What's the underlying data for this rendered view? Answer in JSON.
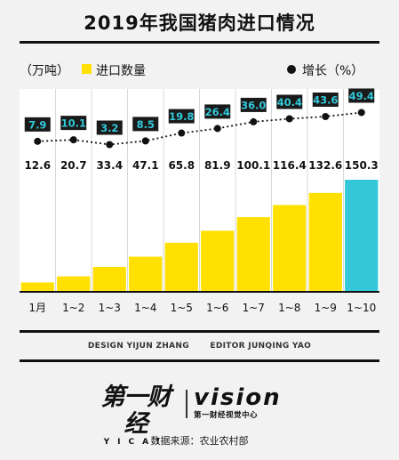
{
  "title": "2019年我国猪肉进口情况",
  "credits": {
    "design": "DESIGN YIJUN ZHANG",
    "editor": "EDITOR JUNQING YAO"
  },
  "logos": {
    "yica_text": "第一财经",
    "yica_sub": "YICAI",
    "vision_text": "vision",
    "vision_sub": "第一财经视觉中心"
  },
  "source": "数据来源：农业农村部",
  "colors": {
    "bar": "#ffe000",
    "bar_highlight": "#33c8d9",
    "label_box": "#1a1a1a",
    "label_text": "#33c8d9",
    "background": "#f2f2f2"
  },
  "chart_data": {
    "type": "bar",
    "categories": [
      "1月",
      "1~2",
      "1~3",
      "1~4",
      "1~5",
      "1~6",
      "1~7",
      "1~8",
      "1~9",
      "1~10"
    ],
    "series": [
      {
        "name": "进口数量",
        "unit": "万吨",
        "type": "bar",
        "values": [
          12.6,
          20.7,
          33.4,
          47.1,
          65.8,
          81.9,
          100.1,
          116.4,
          132.6,
          150.3
        ]
      },
      {
        "name": "增长",
        "unit": "%",
        "type": "line",
        "values": [
          7.9,
          10.1,
          3.2,
          8.5,
          19.8,
          26.4,
          36.0,
          40.4,
          43.6,
          49.4
        ]
      }
    ],
    "legend": {
      "bar_unit": "（万吨）",
      "bar_label": "进口数量",
      "line_label": "增长（%）"
    },
    "ylim": [
      0,
      150.3
    ],
    "highlight_index": 9,
    "grid": true
  }
}
